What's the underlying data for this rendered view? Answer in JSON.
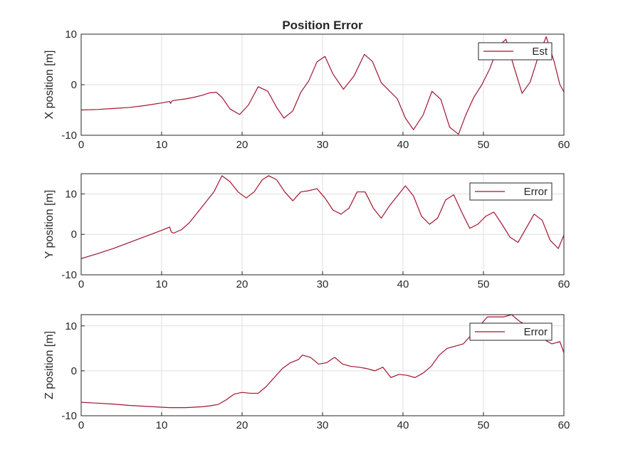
{
  "chart_data": [
    {
      "type": "line",
      "title": "Position Error",
      "xlabel": "",
      "ylabel": "X position [m]",
      "xlim": [
        0,
        60
      ],
      "ylim": [
        -10,
        10
      ],
      "xticks": [
        0,
        10,
        20,
        30,
        40,
        50,
        60
      ],
      "yticks": [
        -10,
        0,
        10
      ],
      "grid": true,
      "legend": "top-right",
      "series": [
        {
          "name": "Est",
          "color": "#a2142f",
          "x": [
            0,
            2,
            4,
            6,
            8,
            10,
            11,
            11.1,
            11.3,
            12,
            13,
            14,
            15,
            16,
            16.8,
            17.5,
            18.5,
            19.7,
            20.8,
            22,
            23.2,
            24.3,
            25.2,
            26.3,
            27.3,
            28.3,
            29.3,
            30.3,
            31.3,
            32.6,
            33.9,
            35.2,
            36.2,
            37.3,
            38.3,
            39.3,
            40.3,
            41.3,
            42.5,
            43.6,
            44.7,
            45.8,
            46.9,
            47.8,
            48.8,
            49.8,
            50.8,
            51.8,
            52.8,
            53.8,
            54.8,
            55.8,
            56.8,
            57.8,
            58.8,
            59.5,
            60
          ],
          "y": [
            -5,
            -4.9,
            -4.7,
            -4.5,
            -4.1,
            -3.6,
            -3.3,
            -3.7,
            -3.2,
            -3.0,
            -2.8,
            -2.5,
            -2.1,
            -1.6,
            -1.5,
            -2.5,
            -4.8,
            -5.9,
            -4.0,
            -0.4,
            -1.3,
            -4.5,
            -6.6,
            -5.2,
            -1.5,
            0.8,
            4.5,
            5.6,
            2.1,
            -0.9,
            1.7,
            6.0,
            4.6,
            0.4,
            -1.2,
            -2.8,
            -6.6,
            -8.9,
            -6.0,
            -1.3,
            -2.9,
            -8.4,
            -9.8,
            -6.0,
            -2.5,
            0.0,
            3.2,
            7.5,
            9.0,
            3.5,
            -1.7,
            0.5,
            5.5,
            9.5,
            4.5,
            0.0,
            -1.4
          ]
        }
      ]
    },
    {
      "type": "line",
      "xlabel": "",
      "ylabel": "Y position [m]",
      "xlim": [
        0,
        60
      ],
      "ylim": [
        -10,
        15
      ],
      "xticks": [
        0,
        10,
        20,
        30,
        40,
        50,
        60
      ],
      "yticks": [
        -10,
        0,
        10
      ],
      "grid": true,
      "legend": "top-right",
      "series": [
        {
          "name": "Error",
          "color": "#a2142f",
          "x": [
            0,
            2,
            4,
            6,
            8,
            10,
            11,
            11.2,
            11.5,
            12.5,
            13.5,
            14.5,
            15.5,
            16.5,
            17.5,
            18.5,
            19.5,
            20.5,
            21.5,
            22.5,
            23.3,
            24.3,
            25.3,
            26.3,
            27.3,
            28.3,
            29.3,
            30.3,
            31.3,
            32.3,
            33.3,
            34.3,
            35.3,
            36.3,
            37.3,
            38.3,
            39.3,
            40.3,
            41.3,
            42.3,
            43.3,
            44.3,
            45.3,
            46.3,
            47.3,
            48.3,
            49.3,
            50.3,
            51.3,
            52.3,
            53.3,
            54.3,
            55.3,
            56.3,
            57.3,
            58.3,
            59.3,
            60
          ],
          "y": [
            -6.0,
            -4.8,
            -3.5,
            -2.0,
            -0.5,
            1.0,
            1.8,
            0.6,
            0.3,
            1.2,
            3.0,
            5.5,
            8.0,
            10.5,
            14.5,
            13.0,
            10.5,
            9.0,
            10.5,
            13.5,
            14.5,
            13.5,
            10.5,
            8.3,
            10.5,
            10.8,
            11.3,
            9.0,
            6.0,
            5.0,
            6.5,
            10.5,
            10.5,
            6.5,
            4.0,
            7.0,
            9.5,
            12.0,
            9.5,
            4.5,
            2.5,
            4.0,
            8.5,
            9.8,
            5.5,
            1.5,
            2.5,
            4.5,
            5.5,
            2.5,
            -0.7,
            -2.0,
            1.5,
            5.0,
            3.5,
            -1.5,
            -3.5,
            -0.2
          ]
        }
      ]
    },
    {
      "type": "line",
      "xlabel": "",
      "ylabel": "Z position [m]",
      "xlim": [
        0,
        60
      ],
      "ylim": [
        -10,
        12.5
      ],
      "xticks": [
        0,
        10,
        20,
        30,
        40,
        50,
        60
      ],
      "yticks": [
        -10,
        0,
        10
      ],
      "grid": true,
      "legend": "top-right",
      "series": [
        {
          "name": "Error",
          "color": "#a2142f",
          "x": [
            0,
            2,
            4,
            6,
            8,
            10,
            11,
            12,
            13,
            14,
            15,
            16,
            17,
            18,
            19,
            20,
            21,
            22,
            23,
            24,
            25,
            26,
            27,
            27.5,
            28.5,
            29.5,
            30.5,
            31.5,
            32.5,
            33.5,
            34.5,
            35.5,
            36.5,
            37.5,
            38.5,
            39.5,
            40.5,
            41.5,
            42.5,
            43.5,
            44.5,
            45.5,
            46.5,
            47.5,
            48.5,
            49.5,
            50.5,
            51.5,
            52.5,
            53.5,
            54.5,
            55.5,
            56.5,
            57.5,
            58.5,
            59.5,
            60
          ],
          "y": [
            -7.0,
            -7.2,
            -7.4,
            -7.7,
            -7.9,
            -8.1,
            -8.2,
            -8.2,
            -8.2,
            -8.1,
            -8.0,
            -7.8,
            -7.5,
            -6.5,
            -5.2,
            -4.8,
            -5.0,
            -5.0,
            -3.5,
            -1.5,
            0.5,
            1.8,
            2.5,
            3.5,
            3.0,
            1.5,
            1.8,
            3.0,
            1.5,
            1.0,
            0.8,
            0.5,
            0.0,
            0.8,
            -1.5,
            -0.8,
            -1.0,
            -1.5,
            -0.5,
            1.0,
            3.5,
            5.0,
            5.5,
            6.0,
            8.0,
            10.0,
            12.0,
            12.0,
            12.0,
            12.5,
            11.0,
            10.0,
            8.5,
            7.0,
            6.0,
            6.5,
            4.0
          ]
        }
      ]
    }
  ]
}
